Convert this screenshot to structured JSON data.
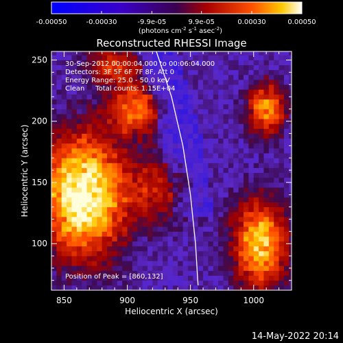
{
  "chart_data": {
    "type": "heatmap",
    "title": "Reconstructed RHESSI Image",
    "xlabel": "Heliocentric X (arcsec)",
    "ylabel": "Heliocentric Y (arcsec)",
    "xlim": [
      840,
      1030
    ],
    "ylim": [
      62,
      257
    ],
    "xticks": [
      "850",
      "900",
      "950",
      "1000"
    ],
    "xtick_values": [
      850,
      900,
      950,
      1000
    ],
    "yticks": [
      "100",
      "150",
      "200",
      "250"
    ],
    "ytick_values": [
      100,
      150,
      200,
      250
    ],
    "colorbar": {
      "ticks": [
        "-0.00050",
        "-0.00030",
        "-9.9e-05",
        "9.9e-05",
        "0.00030",
        "0.00050"
      ],
      "tick_values": [
        -0.0005,
        -0.0003,
        -9.9e-05,
        9.9e-05,
        0.0003,
        0.0005
      ],
      "range": [
        -0.0005,
        0.0005
      ],
      "units_parts": [
        "(photons cm",
        "-2",
        " s",
        "-1",
        " asec",
        "-2",
        ")"
      ]
    },
    "annotations": [
      "30-Sep-2012 00:00:04.000 to 00:06:04.000",
      "Detectors: 3F 5F 6F 7F 8F, Att 0",
      "Energy Range: 25.0 - 50.0 keV",
      "Clean     Total counts: 1.15E+04"
    ],
    "peak_label": "Position of Peak = [860,132]",
    "peak_position": [
      860,
      132
    ],
    "sources": [
      {
        "x": 865,
        "y": 140,
        "sx": 22,
        "sy": 32,
        "amp": 1.0
      },
      {
        "x": 905,
        "y": 210,
        "sx": 14,
        "sy": 14,
        "amp": 0.55
      },
      {
        "x": 1005,
        "y": 100,
        "sx": 14,
        "sy": 24,
        "amp": 0.75
      },
      {
        "x": 1010,
        "y": 210,
        "sx": 10,
        "sy": 14,
        "amp": 0.6
      },
      {
        "x": 890,
        "y": 245,
        "sx": 14,
        "sy": 10,
        "amp": 0.4
      },
      {
        "x": 925,
        "y": 145,
        "sx": 18,
        "sy": 18,
        "amp": 0.3
      }
    ],
    "limb_curve": [
      [
        923,
        257
      ],
      [
        935,
        220
      ],
      [
        944,
        180
      ],
      [
        950,
        140
      ],
      [
        954,
        100
      ],
      [
        956,
        66
      ]
    ],
    "limb_color": "#ffffff",
    "background_level": 0.08
  },
  "timestamp": "14-May-2022 20:14"
}
